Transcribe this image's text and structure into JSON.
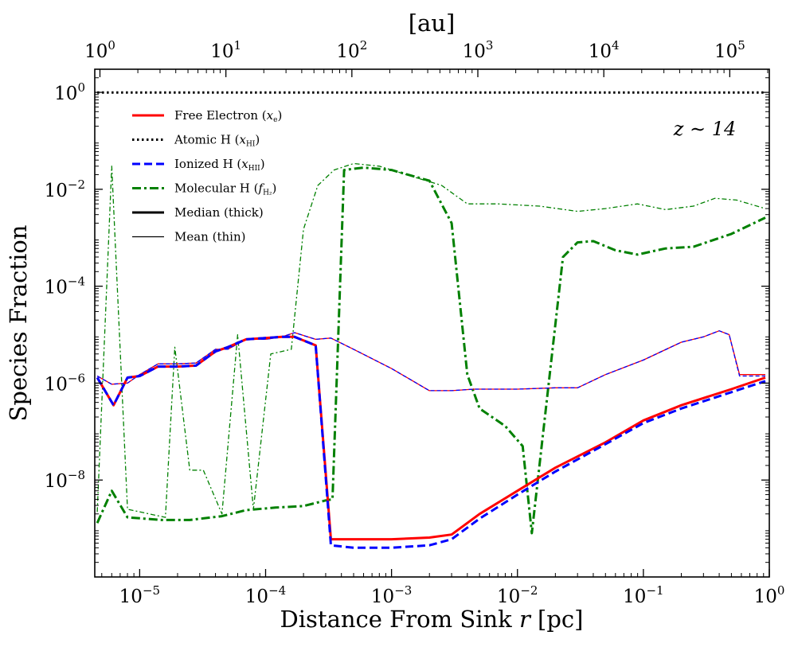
{
  "chart_data": {
    "type": "line",
    "title": "",
    "xlabel": "Distance From Sink r [pc]",
    "ylabel": "Species Fraction",
    "top_xlabel": "[au]",
    "xscale": "log",
    "yscale": "log",
    "xlim": [
      4.4e-06,
      1.0
    ],
    "ylim": [
      1e-10,
      3
    ],
    "top_xlim_au": [
      0.91,
      206000
    ],
    "annotation": "z ∼ 14",
    "x_ticks": [
      {
        "value": 1e-05,
        "base": "10",
        "exp": "−5"
      },
      {
        "value": 0.0001,
        "base": "10",
        "exp": "−4"
      },
      {
        "value": 0.001,
        "base": "10",
        "exp": "−3"
      },
      {
        "value": 0.01,
        "base": "10",
        "exp": "−2"
      },
      {
        "value": 0.1,
        "base": "10",
        "exp": "−1"
      },
      {
        "value": 1,
        "base": "10",
        "exp": "0"
      }
    ],
    "top_x_ticks": [
      {
        "value": 1,
        "base": "10",
        "exp": "0"
      },
      {
        "value": 10,
        "base": "10",
        "exp": "1"
      },
      {
        "value": 100,
        "base": "10",
        "exp": "2"
      },
      {
        "value": 1000,
        "base": "10",
        "exp": "3"
      },
      {
        "value": 10000,
        "base": "10",
        "exp": "4"
      },
      {
        "value": 100000,
        "base": "10",
        "exp": "5"
      }
    ],
    "y_ticks": [
      {
        "value": 1,
        "base": "10",
        "exp": "0"
      },
      {
        "value": 0.01,
        "base": "10",
        "exp": "−2"
      },
      {
        "value": 0.0001,
        "base": "10",
        "exp": "−4"
      },
      {
        "value": 1e-06,
        "base": "10",
        "exp": "−6"
      },
      {
        "value": 1e-08,
        "base": "10",
        "exp": "−8"
      }
    ],
    "legend": [
      {
        "label": "Free Electron",
        "sym": "x",
        "sub": "e",
        "color": "#ff0000",
        "dash": "solid",
        "width": "thick"
      },
      {
        "label": "Atomic H",
        "sym": "x",
        "sub": "HI",
        "color": "#000000",
        "dash": "dotted",
        "width": "thick"
      },
      {
        "label": "Ionized H",
        "sym": "x",
        "sub": "HII",
        "color": "#0000ff",
        "dash": "dashed",
        "width": "thick"
      },
      {
        "label": "Molecular H",
        "sym": "f",
        "sub": "H₂",
        "color": "#008000",
        "dash": "dashdot",
        "width": "thick"
      },
      {
        "label": "Median (thick)",
        "sym": "",
        "sub": "",
        "color": "#000000",
        "dash": "solid",
        "width": "thick"
      },
      {
        "label": "Mean (thin)",
        "sym": "",
        "sub": "",
        "color": "#000000",
        "dash": "solid",
        "width": "thin"
      }
    ],
    "series": [
      {
        "name": "Atomic H median",
        "color": "#000000",
        "style": "dotted",
        "weight": "thick",
        "x": [
          4.6e-06,
          1e-05,
          0.0001,
          0.001,
          0.01,
          0.1,
          0.93
        ],
        "y": [
          0.99,
          0.99,
          0.99,
          0.99,
          0.99,
          0.99,
          0.99
        ]
      },
      {
        "name": "Molecular H mean",
        "color": "#008000",
        "style": "dashdot",
        "weight": "thin",
        "x": [
          4.6e-06,
          6e-06,
          8e-06,
          1.6e-05,
          1.9e-05,
          2.5e-05,
          3.2e-05,
          4.5e-05,
          6e-05,
          8e-05,
          0.00011,
          0.00016,
          0.0002,
          0.00026,
          0.00035,
          0.0005,
          0.0008,
          0.0015,
          0.0025,
          0.004,
          0.007,
          0.015,
          0.03,
          0.05,
          0.09,
          0.15,
          0.25,
          0.37,
          0.55,
          0.93
        ],
        "y": [
          2.2e-09,
          0.03,
          2.5e-09,
          1.7e-09,
          5.5e-06,
          1.6e-08,
          1.6e-08,
          2e-09,
          1e-05,
          2.5e-09,
          4e-06,
          5e-06,
          0.0015,
          0.012,
          0.025,
          0.034,
          0.03,
          0.018,
          0.012,
          0.005,
          0.005,
          0.0045,
          0.0035,
          0.004,
          0.005,
          0.0038,
          0.0045,
          0.0065,
          0.006,
          0.004
        ]
      },
      {
        "name": "Molecular H median",
        "color": "#008000",
        "style": "dashdot",
        "weight": "thick",
        "x": [
          4.6e-06,
          6e-06,
          8e-06,
          1.5e-05,
          2.5e-05,
          4.5e-05,
          7e-05,
          0.00012,
          0.0002,
          0.0003,
          0.00034,
          0.00042,
          0.0006,
          0.001,
          0.002,
          0.003,
          0.004,
          0.005,
          0.008,
          0.011,
          0.013,
          0.023,
          0.03,
          0.04,
          0.06,
          0.09,
          0.15,
          0.25,
          0.5,
          0.93
        ],
        "y": [
          1.3e-09,
          6e-09,
          1.7e-09,
          1.5e-09,
          1.5e-09,
          1.8e-09,
          2.4e-09,
          2.7e-09,
          2.9e-09,
          3.8e-09,
          4e-09,
          0.025,
          0.028,
          0.025,
          0.015,
          0.002,
          1.5e-06,
          3e-07,
          1.3e-07,
          5e-08,
          8e-10,
          0.0004,
          0.0008,
          0.00085,
          0.00055,
          0.00045,
          0.0006,
          0.00065,
          0.0012,
          0.0026
        ]
      },
      {
        "name": "Free Electron mean",
        "color": "#ff0000",
        "style": "solid",
        "weight": "thin",
        "x": [
          4.6e-06,
          6e-06,
          8e-06,
          1e-05,
          1.4e-05,
          2e-05,
          2.8e-05,
          4e-05,
          5e-05,
          7e-05,
          0.0001,
          0.000135,
          0.00017,
          0.00025,
          0.00033,
          0.0005,
          0.001,
          0.002,
          0.003,
          0.0045,
          0.01,
          0.02,
          0.03,
          0.05,
          0.1,
          0.2,
          0.3,
          0.4,
          0.48,
          0.58,
          0.93
        ],
        "y": [
          1.4e-06,
          9.5e-07,
          1e-06,
          1.5e-06,
          2.5e-06,
          2.5e-06,
          2.6e-06,
          5e-06,
          5e-06,
          8e-06,
          8e-06,
          9e-06,
          1.1e-05,
          8e-06,
          8.5e-06,
          5e-06,
          2e-06,
          7e-07,
          7e-07,
          7.5e-07,
          7.5e-07,
          8e-07,
          8e-07,
          1.5e-06,
          3e-06,
          7e-06,
          9e-06,
          1.2e-05,
          1e-05,
          1.5e-06,
          1.5e-06
        ]
      },
      {
        "name": "Ionized H mean",
        "color": "#0000ff",
        "style": "dashed",
        "weight": "thin",
        "x": [
          4.6e-06,
          6e-06,
          8e-06,
          1e-05,
          1.4e-05,
          2e-05,
          2.8e-05,
          4e-05,
          5e-05,
          7e-05,
          0.0001,
          0.000135,
          0.00017,
          0.00025,
          0.00033,
          0.0005,
          0.001,
          0.002,
          0.003,
          0.0045,
          0.01,
          0.02,
          0.03,
          0.05,
          0.1,
          0.2,
          0.3,
          0.4,
          0.48,
          0.58,
          0.93
        ],
        "y": [
          1.4e-06,
          9.5e-07,
          1e-06,
          1.5e-06,
          2.5e-06,
          2.5e-06,
          2.6e-06,
          5e-06,
          5e-06,
          8e-06,
          8e-06,
          9e-06,
          1.1e-05,
          8e-06,
          8.5e-06,
          5e-06,
          2e-06,
          7e-07,
          7e-07,
          7.5e-07,
          7.5e-07,
          8e-07,
          8e-07,
          1.5e-06,
          3e-06,
          7e-06,
          9e-06,
          1.2e-05,
          1e-05,
          1.4e-06,
          1.4e-06
        ]
      },
      {
        "name": "Free Electron median",
        "color": "#ff0000",
        "style": "solid",
        "weight": "thick",
        "x": [
          4.6e-06,
          6.2e-06,
          8e-06,
          1e-05,
          1.4e-05,
          2e-05,
          2.8e-05,
          4e-05,
          5e-05,
          7e-05,
          0.0001,
          0.000135,
          0.00017,
          0.00025,
          0.00033,
          0.0005,
          0.001,
          0.002,
          0.003,
          0.005,
          0.01,
          0.02,
          0.05,
          0.1,
          0.2,
          0.5,
          0.93
        ],
        "y": [
          1.3e-06,
          3.5e-07,
          1.3e-06,
          1.4e-06,
          2.2e-06,
          2.2e-06,
          2.3e-06,
          4.5e-06,
          5.5e-06,
          8e-06,
          8.5e-06,
          9e-06,
          9e-06,
          6e-06,
          6e-10,
          6e-10,
          6e-10,
          6.5e-10,
          7.5e-10,
          2e-09,
          6e-09,
          1.8e-08,
          6e-08,
          1.7e-07,
          3.5e-07,
          7.5e-07,
          1.3e-06
        ]
      },
      {
        "name": "Ionized H median",
        "color": "#0000ff",
        "style": "dashed",
        "weight": "thick",
        "x": [
          4.6e-06,
          6.2e-06,
          8e-06,
          1e-05,
          1.4e-05,
          2e-05,
          2.8e-05,
          4e-05,
          5e-05,
          7e-05,
          0.0001,
          0.000135,
          0.00017,
          0.00025,
          0.00033,
          0.0005,
          0.001,
          0.002,
          0.003,
          0.005,
          0.01,
          0.02,
          0.05,
          0.1,
          0.2,
          0.5,
          0.93
        ],
        "y": [
          1.3e-06,
          3.5e-07,
          1.3e-06,
          1.4e-06,
          2.2e-06,
          2.2e-06,
          2.3e-06,
          4.5e-06,
          5.5e-06,
          8e-06,
          8.5e-06,
          9e-06,
          9e-06,
          6e-06,
          4.5e-10,
          4e-10,
          4e-10,
          4.5e-10,
          6e-10,
          1.6e-09,
          5e-09,
          1.5e-08,
          5.5e-08,
          1.5e-07,
          3e-07,
          6.5e-07,
          1.1e-06
        ]
      }
    ]
  }
}
